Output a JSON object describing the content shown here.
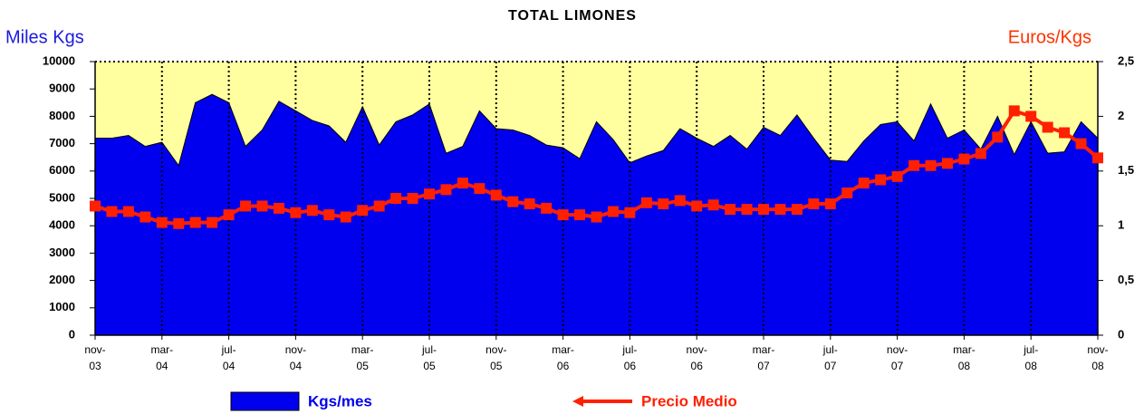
{
  "chart_data": {
    "type": "area",
    "title": "TOTAL LIMONES",
    "ylabel": "Miles Kgs",
    "y2label": "Euros/Kgs",
    "categories": [
      "nov-03",
      null,
      null,
      null,
      "mar-04",
      null,
      null,
      null,
      "jul-04",
      null,
      null,
      null,
      "nov-04",
      null,
      null,
      null,
      "mar-05",
      null,
      null,
      null,
      "jul-05",
      null,
      null,
      null,
      "nov-05",
      null,
      null,
      null,
      "mar-06",
      null,
      null,
      null,
      "jul-06",
      null,
      null,
      null,
      "nov-06",
      null,
      null,
      null,
      "mar-07",
      null,
      null,
      null,
      "jul-07",
      null,
      null,
      null,
      "nov-07",
      null,
      null,
      null,
      "mar-08",
      null,
      null,
      null,
      "jul-08",
      null,
      null,
      null,
      "nov-08"
    ],
    "ylim": [
      0,
      10000
    ],
    "yticks": [
      0,
      1000,
      2000,
      3000,
      4000,
      5000,
      6000,
      7000,
      8000,
      9000,
      10000
    ],
    "y2lim": [
      0,
      2.5
    ],
    "y2ticks": [
      0,
      {
        "value": 0.5,
        "label": "0,5"
      },
      1,
      {
        "value": 1.5,
        "label": "1,5"
      },
      2,
      {
        "value": 2.5,
        "label": "2,5"
      }
    ],
    "background": "#ffffa0",
    "series": [
      {
        "name": "Kgs/mes",
        "type": "area",
        "color": "#0000ee",
        "values": [
          7200,
          7200,
          7300,
          6900,
          7050,
          6200,
          8500,
          8800,
          8500,
          6900,
          7500,
          8550,
          8200,
          7850,
          7650,
          7050,
          8350,
          6950,
          7800,
          8050,
          8450,
          6650,
          6900,
          8200,
          7550,
          7500,
          7300,
          6950,
          6850,
          6450,
          7800,
          7150,
          6300,
          6550,
          6750,
          7550,
          7200,
          6900,
          7300,
          6800,
          7600,
          7300,
          8050,
          7200,
          6400,
          6350,
          7100,
          7700,
          7800,
          7100,
          8450,
          7200,
          7500,
          6800,
          8000,
          6600,
          7800,
          6650,
          6700,
          7800,
          7200
        ]
      },
      {
        "name": "Precio Medio",
        "type": "line",
        "axis": "y2",
        "color": "#ff2000",
        "values": [
          1.18,
          1.13,
          1.13,
          1.08,
          1.03,
          1.02,
          1.03,
          1.03,
          1.1,
          1.18,
          1.18,
          1.16,
          1.12,
          1.14,
          1.1,
          1.08,
          1.14,
          1.18,
          1.25,
          1.25,
          1.29,
          1.33,
          1.39,
          1.34,
          1.28,
          1.22,
          1.2,
          1.16,
          1.1,
          1.1,
          1.08,
          1.13,
          1.12,
          1.21,
          1.2,
          1.23,
          1.18,
          1.19,
          1.15,
          1.15,
          1.15,
          1.15,
          1.15,
          1.2,
          1.2,
          1.3,
          1.39,
          1.42,
          1.45,
          1.55,
          1.55,
          1.57,
          1.61,
          1.66,
          1.81,
          2.05,
          2.0,
          1.9,
          1.85,
          1.75,
          1.62
        ]
      }
    ]
  }
}
